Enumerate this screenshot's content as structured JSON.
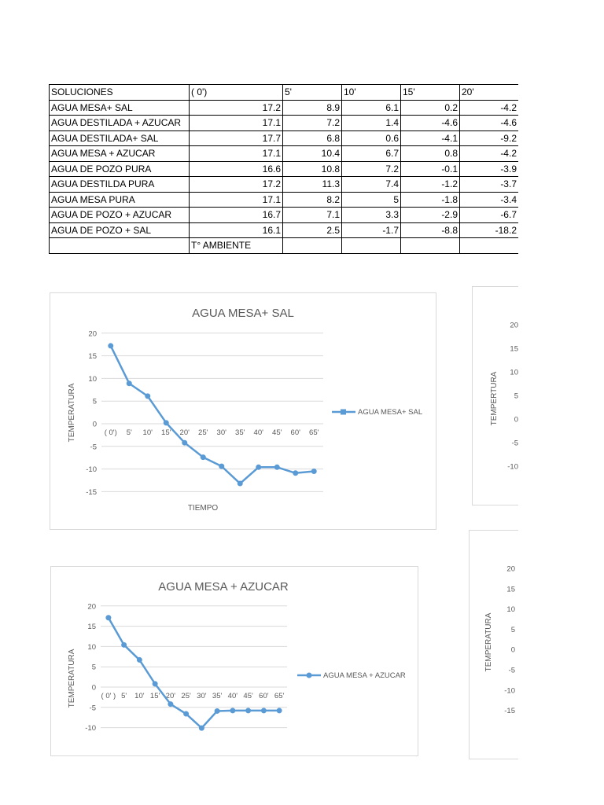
{
  "table": {
    "headers": [
      "SOLUCIONES",
      "( 0')",
      "5'",
      "10'",
      "15'",
      "20'"
    ],
    "rows": [
      {
        "label": "AGUA  MESA+ SAL",
        "values": [
          "17.2",
          "8.9",
          "6.1",
          "0.2",
          "-4.2"
        ]
      },
      {
        "label": "AGUA DESTILADA + AZUCAR",
        "values": [
          "17.1",
          "7.2",
          "1.4",
          "-4.6",
          "-4.6"
        ]
      },
      {
        "label": "AGUA DESTILADA+ SAL",
        "values": [
          "17.7",
          "6.8",
          "0.6",
          "-4.1",
          "-9.2"
        ]
      },
      {
        "label": "AGUA MESA + AZUCAR",
        "values": [
          "17.1",
          "10.4",
          "6.7",
          "0.8",
          "-4.2"
        ]
      },
      {
        "label": "AGUA DE POZO PURA",
        "values": [
          "16.6",
          "10.8",
          "7.2",
          "-0.1",
          "-3.9"
        ]
      },
      {
        "label": "AGUA DESTILDA PURA",
        "values": [
          "17.2",
          "11.3",
          "7.4",
          "-1.2",
          "-3.7"
        ]
      },
      {
        "label": "AGUA MESA PURA",
        "values": [
          "17.1",
          "8.2",
          "5",
          "-1.8",
          "-3.4"
        ]
      },
      {
        "label": "AGUA DE POZO + AZUCAR",
        "values": [
          "16.7",
          "7.1",
          "3.3",
          "-2.9",
          "-6.7"
        ]
      },
      {
        "label": "AGUA DE POZO + SAL",
        "values": [
          "16.1",
          "2.5",
          "-1.7",
          "-8.8",
          "-18.2"
        ]
      }
    ],
    "footer": [
      "",
      "T° AMBIENTE",
      "",
      "",
      "",
      ""
    ]
  },
  "chart_data": [
    {
      "id": "chart1",
      "type": "line",
      "title": "AGUA  MESA+ SAL",
      "xlabel": "TIEMPO",
      "ylabel": "TEMPERATURA",
      "ylim": [
        -15,
        20
      ],
      "yticks": [
        20,
        15,
        10,
        5,
        0,
        -5,
        -10,
        -15
      ],
      "grid": true,
      "legend_position": "right",
      "categories": [
        "( 0')",
        "5'",
        "10'",
        "15'",
        "20'",
        "25'",
        "30'",
        "35'",
        "40'",
        "45'",
        "60'",
        "65'"
      ],
      "series": [
        {
          "name": "AGUA  MESA+ SAL",
          "values": [
            17.2,
            8.9,
            6.1,
            0.2,
            -4.2,
            -7.4,
            -9.4,
            -13.2,
            -9.6,
            -9.6,
            -10.9,
            -10.5
          ]
        }
      ]
    },
    {
      "id": "chart2",
      "type": "line",
      "title": "AGUA MESA + AZUCAR",
      "xlabel": "",
      "ylabel": "TEMPERATURA",
      "ylim": [
        -10,
        20
      ],
      "yticks": [
        20,
        15,
        10,
        5,
        0,
        -5,
        -10
      ],
      "grid": true,
      "legend_position": "right",
      "categories": [
        "( 0' )",
        "5'",
        "10'",
        "15'",
        "20'",
        "25'",
        "30'",
        "35'",
        "40'",
        "45'",
        "60'",
        "65'"
      ],
      "series": [
        {
          "name": "AGUA MESA + AZUCAR",
          "values": [
            17.1,
            10.4,
            6.7,
            0.8,
            -4.2,
            -6.6,
            -10.1,
            -5.9,
            -5.8,
            -5.8,
            -5.8,
            -5.8
          ]
        }
      ]
    },
    {
      "id": "chart3",
      "type": "line",
      "title": "",
      "xlabel": "",
      "ylabel": "TEMPERTURA",
      "yticks": [
        "20",
        "15",
        "10",
        "5",
        "0",
        "-5",
        "-10"
      ],
      "partial": true
    },
    {
      "id": "chart4",
      "type": "line",
      "title": "",
      "xlabel": "",
      "ylabel": "TEMPERATURA",
      "yticks": [
        "20",
        "15",
        "10",
        "5",
        "0",
        "-5",
        "-10",
        "-15"
      ],
      "partial": true
    }
  ]
}
